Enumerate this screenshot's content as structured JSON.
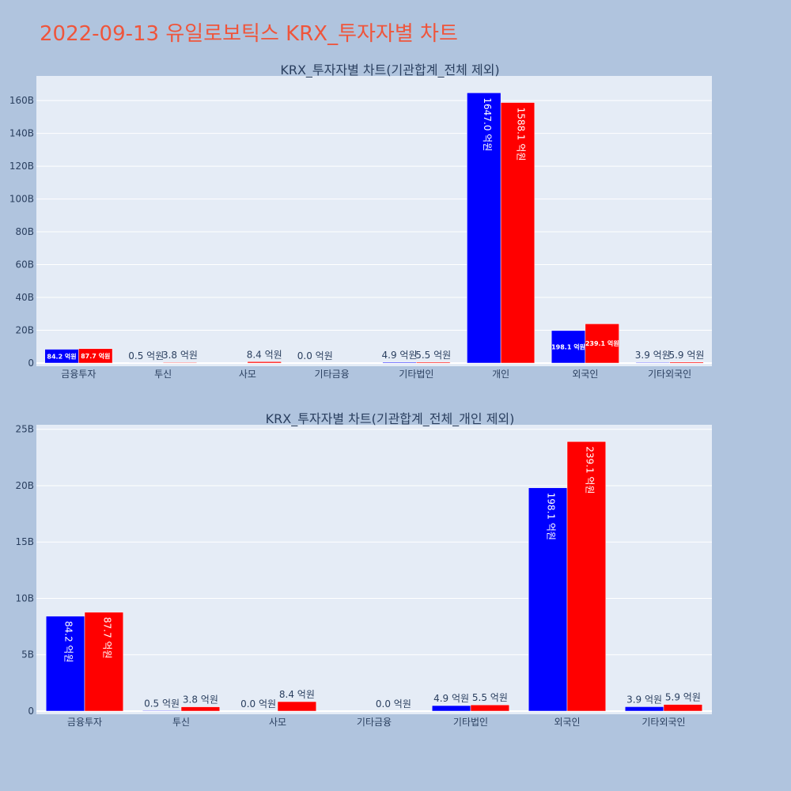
{
  "page": {
    "title": "2022-09-13 유일로보틱스 KRX_투자자별 차트"
  },
  "colors": {
    "background": "#b0c4de",
    "plot_bg": "#e5ecf6",
    "series_buy": "#0000ff",
    "series_sell": "#ff0000",
    "title": "#ef553b",
    "text": "#2a3f5f"
  },
  "chart_data": [
    {
      "type": "bar",
      "title": "KRX_투자자별 차트(기관합계_전체 제외)",
      "categories": [
        "금융투자",
        "투신",
        "사모",
        "기타금융",
        "기타법인",
        "개인",
        "외국인",
        "기타외국인"
      ],
      "ylim": [
        0,
        175
      ],
      "yticks": [
        0,
        20,
        40,
        60,
        80,
        100,
        120,
        140,
        160
      ],
      "ytick_labels": [
        "0",
        "20B",
        "40B",
        "60B",
        "80B",
        "100B",
        "120B",
        "140B",
        "160B"
      ],
      "grid": true,
      "series": [
        {
          "values": [
            8.42,
            0.05,
            0,
            0,
            0.49,
            164.7,
            19.81,
            0.39
          ],
          "labels": [
            "84.2 억원",
            "0.5 억원",
            "",
            "0.0 억원",
            "4.9 억원",
            "1647.0 억원",
            "198.1 억원",
            "3.9 억원"
          ]
        },
        {
          "values": [
            8.77,
            0.38,
            0.84,
            0,
            0.55,
            158.81,
            23.91,
            0.59
          ],
          "labels": [
            "87.7 억원",
            "3.8 억원",
            "8.4 억원",
            "",
            "5.5 억원",
            "1588.1 억원",
            "239.1 억원",
            "5.9 억원"
          ]
        }
      ]
    },
    {
      "type": "bar",
      "title": "KRX_투자자별 차트(기관합계_전체_개인 제외)",
      "categories": [
        "금융투자",
        "투신",
        "사모",
        "기타금융",
        "기타법인",
        "외국인",
        "기타외국인"
      ],
      "ylim": [
        0,
        25.4
      ],
      "yticks": [
        0,
        5,
        10,
        15,
        20,
        25
      ],
      "ytick_labels": [
        "0",
        "5B",
        "10B",
        "15B",
        "20B",
        "25B"
      ],
      "grid": true,
      "series": [
        {
          "values": [
            8.42,
            0.05,
            0,
            0,
            0.49,
            19.81,
            0.39
          ],
          "labels": [
            "84.2 억원",
            "0.5 억원",
            "0.0 억원",
            "",
            "4.9 억원",
            "198.1 억원",
            "3.9 억원"
          ]
        },
        {
          "values": [
            8.77,
            0.38,
            0.84,
            0,
            0.55,
            23.91,
            0.59
          ],
          "labels": [
            "87.7 억원",
            "3.8 억원",
            "8.4 억원",
            "0.0 억원",
            "5.5 억원",
            "239.1 억원",
            "5.9 억원"
          ]
        }
      ]
    }
  ]
}
